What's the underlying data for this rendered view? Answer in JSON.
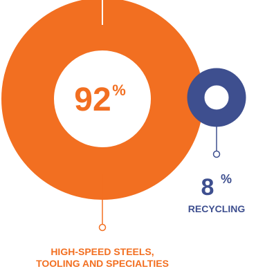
{
  "colors": {
    "primary": "#F26F21",
    "secondary": "#3E4F8F",
    "background": "#FFFFFF"
  },
  "chart_data": {
    "type": "pie",
    "series": [
      {
        "name": "HIGH-SPEED STEELS, TOOLING AND SPECIALTIES",
        "value": 92,
        "display_value": "92",
        "unit": "%"
      },
      {
        "name": "RECYCLING",
        "value": 8,
        "display_value": "8",
        "unit": "%"
      }
    ],
    "label_lines": {
      "primary": [
        "HIGH-SPEED STEELS,",
        "TOOLING AND SPECIALTIES"
      ],
      "secondary": "RECYCLING"
    }
  }
}
